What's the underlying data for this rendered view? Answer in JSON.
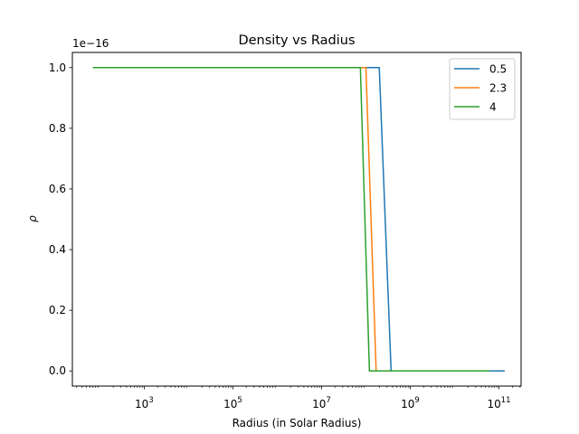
{
  "chart_data": {
    "type": "line",
    "title": "Density vs Radius",
    "xlabel": "Radius (in Solar Radius)",
    "ylabel": "ρ",
    "y_offset_label": "1e−16",
    "xscale": "log",
    "xlim": [
      24.0,
      316000000000
    ],
    "ylim": [
      -0.05,
      1.05
    ],
    "x_ticks": [
      {
        "value": 1000,
        "base": "10",
        "exp": "3"
      },
      {
        "value": 100000,
        "base": "10",
        "exp": "5"
      },
      {
        "value": 10000000,
        "base": "10",
        "exp": "7"
      },
      {
        "value": 1000000000,
        "base": "10",
        "exp": "9"
      },
      {
        "value": 100000000000,
        "base": "10",
        "exp": "11"
      }
    ],
    "y_ticks": [
      {
        "value": 0.0,
        "label": "0.0"
      },
      {
        "value": 0.2,
        "label": "0.2"
      },
      {
        "value": 0.4,
        "label": "0.4"
      },
      {
        "value": 0.6,
        "label": "0.6"
      },
      {
        "value": 0.8,
        "label": "0.8"
      },
      {
        "value": 1.0,
        "label": "1.0"
      }
    ],
    "grid": false,
    "legend_position": "top-right",
    "series": [
      {
        "name": "0.5",
        "color": "#1f77b4",
        "points": [
          [
            70,
            1.0
          ],
          [
            200000000,
            1.0
          ],
          [
            370000000,
            0.0
          ],
          [
            135000000000,
            0.0
          ]
        ]
      },
      {
        "name": "2.3",
        "color": "#ff7f0e",
        "points": [
          [
            70,
            1.0
          ],
          [
            100000000,
            1.0
          ],
          [
            170000000,
            0.0
          ],
          [
            60000000000,
            0.0
          ]
        ]
      },
      {
        "name": "4",
        "color": "#2ca02c",
        "points": [
          [
            70,
            1.0
          ],
          [
            75000000,
            1.0
          ],
          [
            120000000,
            0.0
          ],
          [
            60000000000,
            0.0
          ]
        ]
      }
    ]
  }
}
